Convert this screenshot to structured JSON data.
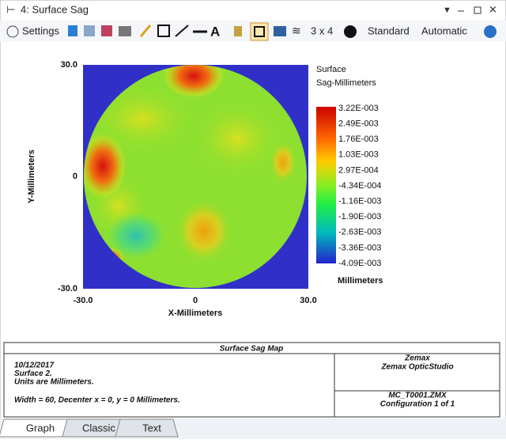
{
  "window": {
    "title": "4: Surface Sag"
  },
  "toolbar": {
    "settings": "Settings",
    "layout": "3 x 4",
    "style": "Standard",
    "scale": "Automatic"
  },
  "plot": {
    "y_ticks": [
      "30.0",
      "0",
      "-30.0"
    ],
    "x_ticks": [
      "-30.0",
      "0",
      "30.0"
    ],
    "x_label": "X-Millimeters",
    "y_label": "Y-Millimeters"
  },
  "legend": {
    "title": [
      "Surface",
      "Sag-Millimeters"
    ],
    "labels": [
      "3.22E-003",
      "2.49E-003",
      "1.76E-003",
      "1.03E-003",
      "2.97E-004",
      "-4.34E-004",
      "-1.16E-003",
      "-1.90E-003",
      "-2.63E-003",
      "-3.36E-003",
      "-4.09E-003"
    ],
    "units": "Millimeters"
  },
  "info": {
    "title": "Surface Sag Map",
    "left": [
      "10/12/2017",
      "Surface 2.",
      "Units are Millimeters."
    ],
    "settings": "Width = 60, Decenter x = 0, y = 0 Millimeters.",
    "company": "Zemax",
    "product": "Zemax OpticStudio",
    "file": "MC_T0001.ZMX",
    "config": "Configuration 1 of 1"
  },
  "tabs": [
    "Graph",
    "Classic",
    "Text"
  ]
}
